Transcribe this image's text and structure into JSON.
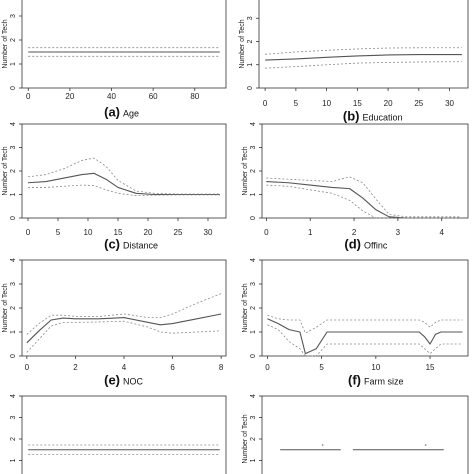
{
  "chart_data": [
    {
      "type": "line",
      "panel_label": "(a)",
      "xlabel": "Age",
      "ylabel": "Number of Tech",
      "xlim": [
        -3,
        95
      ],
      "ylim": [
        0,
        4
      ],
      "xticks": [
        0,
        20,
        40,
        60,
        80
      ],
      "yticks": [
        0,
        1,
        2,
        3,
        4
      ],
      "series": [
        {
          "role": "estimate",
          "x": [
            0,
            92
          ],
          "y": [
            1.5,
            1.5
          ]
        },
        {
          "role": "upper",
          "x": [
            0,
            92
          ],
          "y": [
            1.68,
            1.68
          ]
        },
        {
          "role": "lower",
          "x": [
            0,
            92
          ],
          "y": [
            1.32,
            1.32
          ]
        }
      ]
    },
    {
      "type": "line",
      "panel_label": "(b)",
      "xlabel": "Education",
      "ylabel": "Number of Tech",
      "xlim": [
        -1,
        33
      ],
      "ylim": [
        0,
        4
      ],
      "xticks": [
        0,
        5,
        10,
        15,
        20,
        25,
        30
      ],
      "yticks": [
        0,
        1,
        2,
        3,
        4
      ],
      "series": [
        {
          "role": "estimate",
          "x": [
            0,
            5,
            10,
            15,
            20,
            25,
            30,
            32
          ],
          "y": [
            1.2,
            1.25,
            1.32,
            1.38,
            1.42,
            1.44,
            1.44,
            1.44
          ]
        },
        {
          "role": "upper",
          "x": [
            0,
            5,
            10,
            15,
            20,
            25,
            30,
            32
          ],
          "y": [
            1.45,
            1.55,
            1.62,
            1.68,
            1.72,
            1.73,
            1.73,
            1.73
          ]
        },
        {
          "role": "lower",
          "x": [
            0,
            5,
            10,
            15,
            20,
            25,
            30,
            32
          ],
          "y": [
            0.85,
            0.92,
            1.0,
            1.07,
            1.1,
            1.12,
            1.13,
            1.13
          ]
        }
      ]
    },
    {
      "type": "line",
      "panel_label": "(c)",
      "xlabel": "Distance",
      "ylabel": "Number of Tech",
      "xlim": [
        -1,
        33
      ],
      "ylim": [
        0,
        4
      ],
      "xticks": [
        0,
        5,
        10,
        15,
        20,
        25,
        30
      ],
      "yticks": [
        0,
        1,
        2,
        3,
        4
      ],
      "series": [
        {
          "role": "estimate",
          "x": [
            0,
            3,
            6,
            9,
            11,
            13,
            15,
            18,
            21,
            25,
            30,
            32
          ],
          "y": [
            1.5,
            1.55,
            1.7,
            1.85,
            1.9,
            1.65,
            1.3,
            1.05,
            1.0,
            1.0,
            1.0,
            1.0
          ]
        },
        {
          "role": "upper",
          "x": [
            0,
            3,
            6,
            9,
            11,
            13,
            15,
            18,
            21,
            25,
            30,
            32
          ],
          "y": [
            1.75,
            1.85,
            2.1,
            2.45,
            2.55,
            2.2,
            1.6,
            1.15,
            1.05,
            1.02,
            1.02,
            1.02
          ]
        },
        {
          "role": "lower",
          "x": [
            0,
            3,
            6,
            9,
            11,
            13,
            15,
            18,
            21,
            25,
            30,
            32
          ],
          "y": [
            1.3,
            1.3,
            1.35,
            1.4,
            1.38,
            1.2,
            1.05,
            0.95,
            0.97,
            0.98,
            0.98,
            0.98
          ]
        }
      ]
    },
    {
      "type": "line",
      "panel_label": "(d)",
      "xlabel": "Offinc",
      "ylabel": "Number of Tech",
      "xlim": [
        -0.1,
        4.6
      ],
      "ylim": [
        0,
        4
      ],
      "xticks": [
        0,
        1,
        2,
        3,
        4
      ],
      "yticks": [
        0,
        1,
        2,
        3,
        4
      ],
      "series": [
        {
          "role": "estimate",
          "x": [
            0,
            0.5,
            1.0,
            1.5,
            1.9,
            2.2,
            2.5,
            2.8,
            3.2,
            3.6,
            4.0,
            4.4
          ],
          "y": [
            1.55,
            1.5,
            1.4,
            1.3,
            1.25,
            0.85,
            0.35,
            0.05,
            0.0,
            0.0,
            0.0,
            0.0
          ]
        },
        {
          "role": "upper",
          "x": [
            0,
            0.5,
            1.0,
            1.5,
            1.9,
            2.2,
            2.5,
            2.8,
            3.2,
            3.6,
            4.0,
            4.4
          ],
          "y": [
            1.7,
            1.65,
            1.6,
            1.55,
            1.75,
            1.5,
            0.8,
            0.15,
            0.05,
            0.05,
            0.05,
            0.05
          ]
        },
        {
          "role": "lower",
          "x": [
            0,
            0.5,
            1.0,
            1.5,
            1.9,
            2.2,
            2.5,
            2.8,
            3.2,
            3.6,
            4.0,
            4.4
          ],
          "y": [
            1.4,
            1.35,
            1.2,
            1.05,
            0.75,
            0.3,
            0.0,
            0.0,
            0.0,
            0.0,
            0.0,
            0.0
          ]
        }
      ]
    },
    {
      "type": "line",
      "panel_label": "(e)",
      "xlabel": "NOC",
      "ylabel": "Number of Tech",
      "xlim": [
        -0.2,
        8.2
      ],
      "ylim": [
        0,
        4
      ],
      "xticks": [
        0,
        2,
        4,
        6,
        8
      ],
      "yticks": [
        0,
        1,
        2,
        3,
        4
      ],
      "series": [
        {
          "role": "estimate",
          "x": [
            0,
            0.5,
            1.0,
            1.5,
            2,
            3,
            4,
            5,
            5.5,
            6,
            7,
            8
          ],
          "y": [
            0.55,
            1.05,
            1.5,
            1.58,
            1.55,
            1.55,
            1.6,
            1.4,
            1.3,
            1.35,
            1.55,
            1.75
          ]
        },
        {
          "role": "upper",
          "x": [
            0,
            0.5,
            1.0,
            1.5,
            2,
            3,
            4,
            5,
            5.5,
            6,
            7,
            8
          ],
          "y": [
            0.9,
            1.35,
            1.7,
            1.7,
            1.65,
            1.65,
            1.75,
            1.6,
            1.6,
            1.75,
            2.2,
            2.6
          ]
        },
        {
          "role": "lower",
          "x": [
            0,
            0.5,
            1.0,
            1.5,
            2,
            3,
            4,
            5,
            5.5,
            6,
            7,
            8
          ],
          "y": [
            0.15,
            0.7,
            1.25,
            1.4,
            1.4,
            1.42,
            1.45,
            1.2,
            1.0,
            0.95,
            1.0,
            1.05
          ]
        }
      ]
    },
    {
      "type": "line",
      "panel_label": "(f)",
      "xlabel": "Farm size",
      "ylabel": "Number of Tech",
      "xlim": [
        -0.5,
        18.5
      ],
      "ylim": [
        0,
        4
      ],
      "xticks": [
        0,
        5,
        10,
        15
      ],
      "yticks": [
        0,
        1,
        2,
        3,
        4
      ],
      "series": [
        {
          "role": "estimate",
          "x": [
            0,
            1,
            2,
            3,
            3.5,
            4.5,
            5.5,
            8,
            10,
            12,
            14,
            14.5,
            15,
            15.5,
            16,
            18
          ],
          "y": [
            1.55,
            1.35,
            1.1,
            1.0,
            0.1,
            0.3,
            1.0,
            1.0,
            1.0,
            1.0,
            1.0,
            0.8,
            0.5,
            0.9,
            1.0,
            1.0
          ]
        },
        {
          "role": "upper",
          "x": [
            0,
            1,
            2,
            3,
            3.5,
            4.5,
            5.5,
            8,
            10,
            12,
            14,
            14.5,
            15,
            15.5,
            16,
            18
          ],
          "y": [
            1.7,
            1.55,
            1.5,
            1.5,
            0.95,
            1.2,
            1.5,
            1.5,
            1.5,
            1.5,
            1.5,
            1.4,
            1.2,
            1.4,
            1.5,
            1.5
          ]
        },
        {
          "role": "lower",
          "x": [
            0,
            1,
            2,
            3,
            3.5,
            4.5,
            5.5,
            8,
            10,
            12,
            14,
            14.5,
            15,
            15.5,
            16,
            18
          ],
          "y": [
            1.3,
            1.1,
            0.6,
            0.3,
            0.0,
            0.0,
            0.5,
            0.5,
            0.5,
            0.5,
            0.5,
            0.3,
            0.1,
            0.3,
            0.5,
            0.5
          ]
        }
      ]
    },
    {
      "type": "line",
      "panel_label": "",
      "xlabel": "",
      "ylabel": "",
      "xlim": [
        -3,
        95
      ],
      "ylim": [
        0,
        4
      ],
      "xticks": [],
      "yticks": [
        1,
        2,
        3,
        4
      ],
      "series": [
        {
          "role": "estimate",
          "x": [
            0,
            92
          ],
          "y": [
            1.5,
            1.5
          ]
        },
        {
          "role": "upper",
          "x": [
            0,
            92
          ],
          "y": [
            1.72,
            1.72
          ]
        },
        {
          "role": "lower",
          "x": [
            0,
            92
          ],
          "y": [
            1.28,
            1.28
          ]
        }
      ]
    },
    {
      "type": "line",
      "panel_label": "",
      "xlabel": "",
      "ylabel": "Number of Tech",
      "xlim": [
        -1,
        33
      ],
      "ylim": [
        0,
        4
      ],
      "xticks": [],
      "yticks": [
        1,
        2,
        3,
        4
      ],
      "series": [
        {
          "role": "estimate",
          "x": [
            2,
            12
          ],
          "y": [
            1.5,
            1.5
          ]
        },
        {
          "role": "estimate",
          "x": [
            14,
            29
          ],
          "y": [
            1.5,
            1.5
          ]
        },
        {
          "role": "upper",
          "x": [
            9
          ],
          "y": [
            1.72
          ]
        },
        {
          "role": "upper",
          "x": [
            26
          ],
          "y": [
            1.72
          ]
        }
      ]
    }
  ]
}
